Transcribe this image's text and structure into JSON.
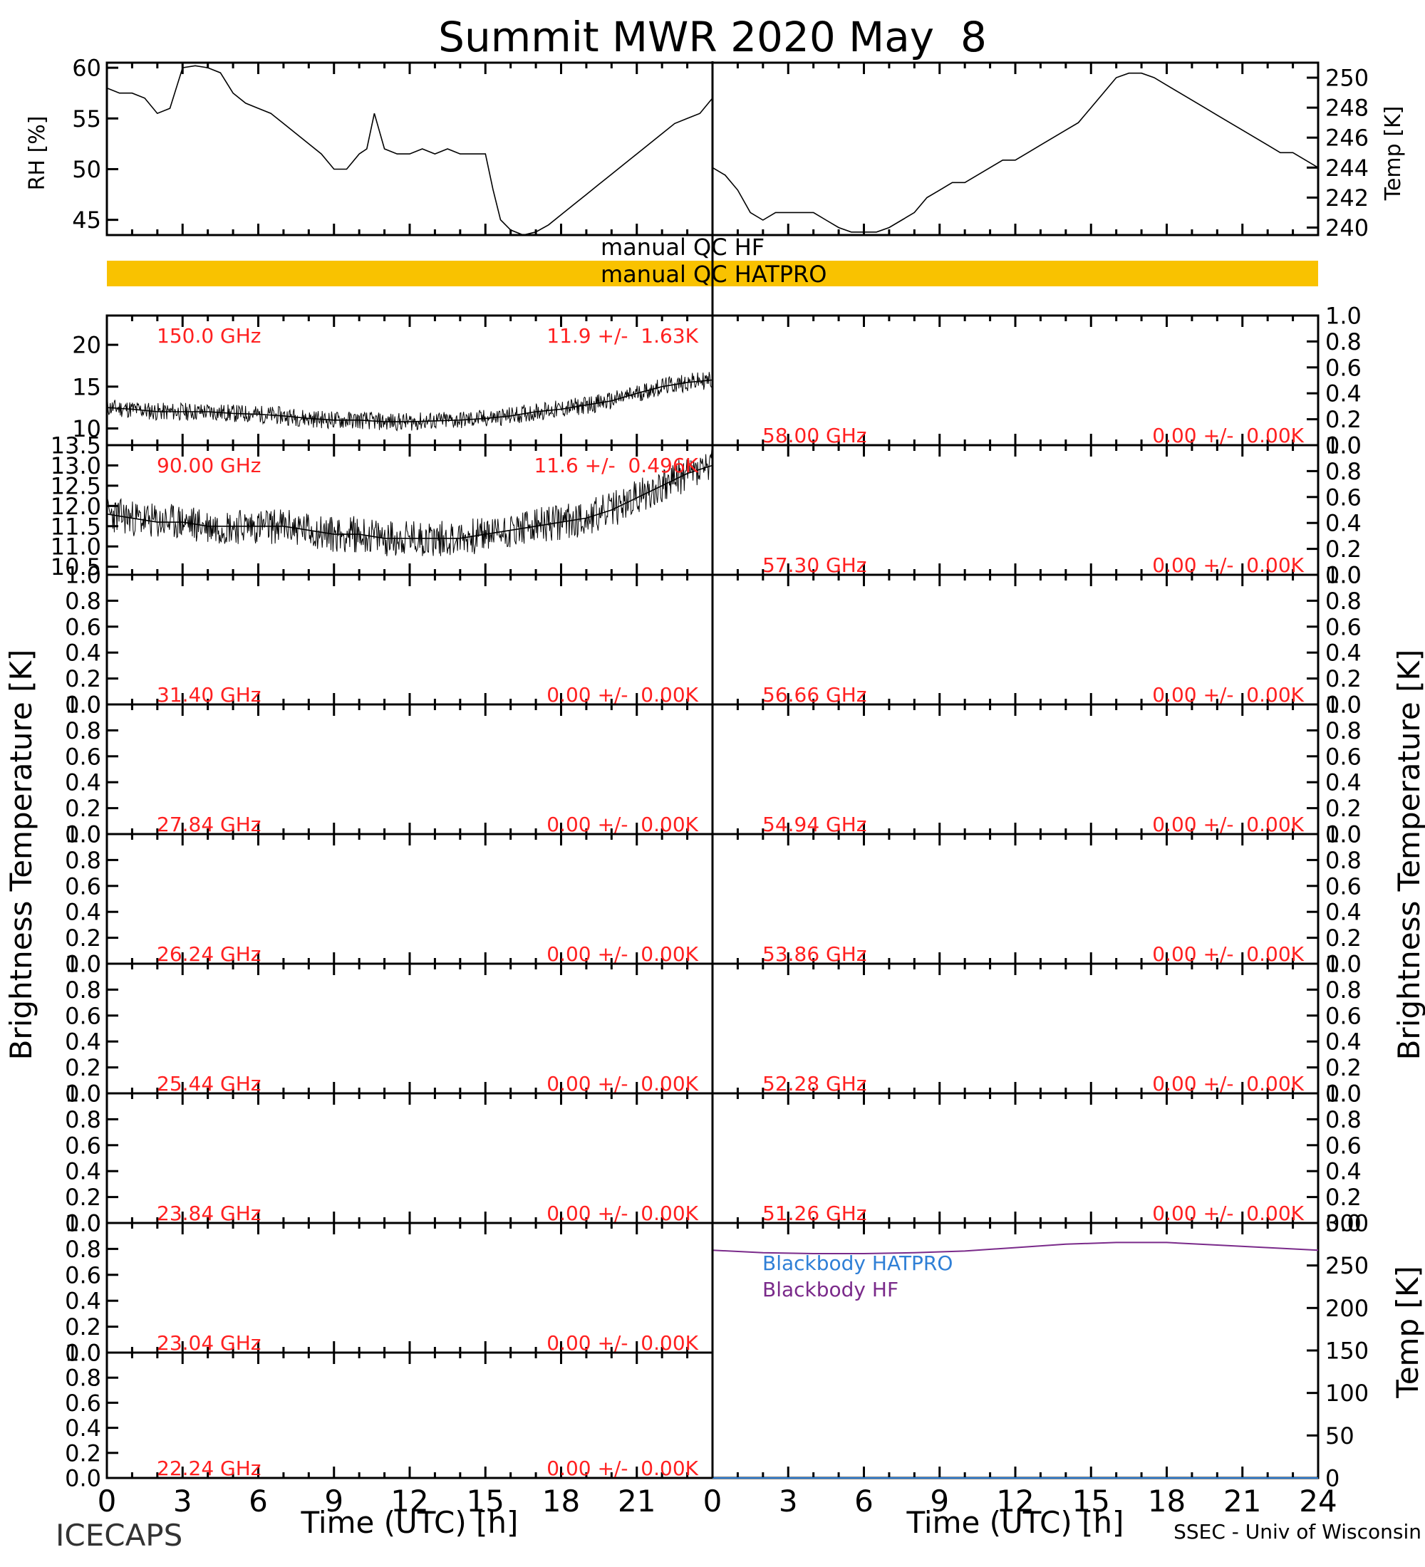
{
  "title": "Summit MWR 2020 May  8",
  "footer": {
    "left": "ICECAPS",
    "right": "SSEC - Univ of Wisconsin"
  },
  "labels": {
    "rh_axis": "RH [%]",
    "temp_axis": "Temp [K]",
    "tb_axis": "Brightness Temperature [K]",
    "bb_axis": "Temp [K]",
    "time_axis": "Time (UTC) [h]"
  },
  "qc": {
    "hf": "manual QC HF",
    "hatpro": "manual QC HATPRO",
    "hatpro_color": "#f9c200"
  },
  "colors": {
    "annotation": "#ff2020",
    "bb_hatpro": "#2f7fd6",
    "bb_hf": "#7a2a8a"
  },
  "chart_data": [
    {
      "id": "rh",
      "type": "line",
      "title": "",
      "xlabel": "",
      "ylabel": "RH [%]",
      "xlim": [
        0,
        24
      ],
      "ylim": [
        43.5,
        60.5
      ],
      "yticks": [
        45,
        50,
        55,
        60
      ],
      "series": [
        {
          "x": [
            0,
            0.5,
            1,
            1.5,
            2,
            2.5,
            3,
            3.5,
            4,
            4.5,
            5,
            5.5,
            6,
            6.5,
            7,
            7.5,
            8,
            8.5,
            9,
            9.5,
            10,
            10.3,
            10.6,
            11,
            11.5,
            12,
            12.5,
            13,
            13.5,
            14,
            14.5,
            15,
            15.3,
            15.6,
            16,
            16.5,
            17,
            17.5,
            18,
            18.5,
            19,
            19.5,
            20,
            20.5,
            21,
            21.5,
            22,
            22.5,
            23,
            23.5,
            24
          ],
          "y": [
            58,
            57.5,
            57.5,
            57,
            55.5,
            56,
            60,
            60.2,
            60,
            59.5,
            57.5,
            56.5,
            56,
            55.5,
            54.5,
            53.5,
            52.5,
            51.5,
            50,
            50,
            51.5,
            52,
            55.5,
            52,
            51.5,
            51.5,
            52,
            51.5,
            52,
            51.5,
            51.5,
            51.5,
            48,
            45,
            44,
            43.5,
            43.8,
            44.5,
            45.5,
            46.5,
            47.5,
            48.5,
            49.5,
            50.5,
            51.5,
            52.5,
            53.5,
            54.5,
            55,
            55.5,
            57
          ]
        }
      ]
    },
    {
      "id": "temp",
      "type": "line",
      "title": "",
      "xlabel": "",
      "ylabel": "Temp [K]",
      "xlim": [
        0,
        24
      ],
      "ylim": [
        239.5,
        251
      ],
      "yticks": [
        240,
        242,
        244,
        246,
        248,
        250
      ],
      "series": [
        {
          "x": [
            0,
            0.5,
            1,
            1.5,
            2,
            2.5,
            3,
            3.5,
            4,
            4.5,
            5,
            5.5,
            6,
            6.5,
            7,
            7.5,
            8,
            8.5,
            9,
            9.5,
            10,
            10.5,
            11,
            11.5,
            12,
            12.5,
            13,
            13.5,
            14,
            14.5,
            15,
            15.5,
            16,
            16.5,
            17,
            17.5,
            18,
            18.5,
            19,
            19.5,
            20,
            20.5,
            21,
            21.5,
            22,
            22.5,
            23,
            23.5,
            24
          ],
          "y": [
            244,
            243.5,
            242.5,
            241,
            240.5,
            241,
            241,
            241,
            241,
            240.5,
            240,
            239.7,
            239.7,
            239.7,
            240,
            240.5,
            241,
            242,
            242.5,
            243,
            243,
            243.5,
            244,
            244.5,
            244.5,
            245,
            245.5,
            246,
            246.5,
            247,
            248,
            249,
            250,
            250.3,
            250.3,
            250,
            249.5,
            249,
            248.5,
            248,
            247.5,
            247,
            246.5,
            246,
            245.5,
            245,
            245,
            244.5,
            244
          ]
        }
      ]
    },
    {
      "id": "ch150",
      "type": "line",
      "ylim": [
        8,
        23.5
      ],
      "yticks": [
        10,
        15,
        20
      ],
      "freq": "150.0 GHz",
      "stat": "11.9 +/-  1.63K",
      "series": [
        {
          "x": [
            0,
            1,
            2,
            3,
            4,
            5,
            6,
            7,
            8,
            9,
            10,
            11,
            12,
            13,
            14,
            15,
            16,
            17,
            18,
            19,
            20,
            21,
            22,
            23,
            24
          ],
          "y": [
            12.5,
            12.3,
            12,
            12,
            12,
            11.8,
            11.7,
            11.5,
            11.2,
            11,
            11,
            10.8,
            10.8,
            10.9,
            11,
            11.2,
            11.5,
            12,
            12.3,
            12.8,
            13.3,
            14.2,
            15,
            15.5,
            15.8
          ]
        }
      ]
    },
    {
      "id": "ch58",
      "type": "line",
      "ylim": [
        0,
        1
      ],
      "yticks": [
        0,
        0.2,
        0.4,
        0.6,
        0.8,
        1.0
      ],
      "freq": "58.00 GHz",
      "stat": "0.00 +/-  0.00K",
      "series": []
    },
    {
      "id": "ch90",
      "type": "line",
      "ylim": [
        10.3,
        13.5
      ],
      "yticks": [
        10.5,
        11.0,
        11.5,
        12.0,
        12.5,
        13.0,
        13.5
      ],
      "freq": "90.00 GHz",
      "stat": "11.6 +/-  0.496K",
      "series": [
        {
          "x": [
            0,
            1,
            2,
            3,
            4,
            5,
            6,
            7,
            8,
            9,
            10,
            11,
            12,
            13,
            14,
            15,
            16,
            17,
            18,
            19,
            20,
            21,
            22,
            23,
            24
          ],
          "y": [
            11.8,
            11.7,
            11.6,
            11.6,
            11.5,
            11.5,
            11.5,
            11.5,
            11.4,
            11.3,
            11.3,
            11.2,
            11.2,
            11.2,
            11.2,
            11.3,
            11.4,
            11.5,
            11.6,
            11.7,
            11.9,
            12.2,
            12.5,
            12.8,
            13.0
          ]
        }
      ]
    },
    {
      "id": "ch5730",
      "type": "line",
      "ylim": [
        0,
        1
      ],
      "yticks": [
        0,
        0.2,
        0.4,
        0.6,
        0.8,
        1.0
      ],
      "freq": "57.30 GHz",
      "stat": "0.00 +/-  0.00K",
      "series": []
    },
    {
      "id": "ch3140",
      "type": "line",
      "ylim": [
        0,
        1
      ],
      "yticks": [
        0,
        0.2,
        0.4,
        0.6,
        0.8,
        1.0
      ],
      "freq": "31.40 GHz",
      "stat": "0.00 +/-  0.00K",
      "series": []
    },
    {
      "id": "ch5666",
      "type": "line",
      "ylim": [
        0,
        1
      ],
      "yticks": [
        0,
        0.2,
        0.4,
        0.6,
        0.8,
        1.0
      ],
      "freq": "56.66 GHz",
      "stat": "0.00 +/-  0.00K",
      "series": []
    },
    {
      "id": "ch2784",
      "type": "line",
      "ylim": [
        0,
        1
      ],
      "yticks": [
        0,
        0.2,
        0.4,
        0.6,
        0.8,
        1.0
      ],
      "freq": "27.84 GHz",
      "stat": "0.00 +/-  0.00K",
      "series": []
    },
    {
      "id": "ch5494",
      "type": "line",
      "ylim": [
        0,
        1
      ],
      "yticks": [
        0,
        0.2,
        0.4,
        0.6,
        0.8,
        1.0
      ],
      "freq": "54.94 GHz",
      "stat": "0.00 +/-  0.00K",
      "series": []
    },
    {
      "id": "ch2624",
      "type": "line",
      "ylim": [
        0,
        1
      ],
      "yticks": [
        0,
        0.2,
        0.4,
        0.6,
        0.8,
        1.0
      ],
      "freq": "26.24 GHz",
      "stat": "0.00 +/-  0.00K",
      "series": []
    },
    {
      "id": "ch5386",
      "type": "line",
      "ylim": [
        0,
        1
      ],
      "yticks": [
        0,
        0.2,
        0.4,
        0.6,
        0.8,
        1.0
      ],
      "freq": "53.86 GHz",
      "stat": "0.00 +/-  0.00K",
      "series": []
    },
    {
      "id": "ch2544",
      "type": "line",
      "ylim": [
        0,
        1
      ],
      "yticks": [
        0,
        0.2,
        0.4,
        0.6,
        0.8,
        1.0
      ],
      "freq": "25.44 GHz",
      "stat": "0.00 +/-  0.00K",
      "series": []
    },
    {
      "id": "ch5228",
      "type": "line",
      "ylim": [
        0,
        1
      ],
      "yticks": [
        0,
        0.2,
        0.4,
        0.6,
        0.8,
        1.0
      ],
      "freq": "52.28 GHz",
      "stat": "0.00 +/-  0.00K",
      "series": []
    },
    {
      "id": "ch2384",
      "type": "line",
      "ylim": [
        0,
        1
      ],
      "yticks": [
        0,
        0.2,
        0.4,
        0.6,
        0.8,
        1.0
      ],
      "freq": "23.84 GHz",
      "stat": "0.00 +/-  0.00K",
      "series": []
    },
    {
      "id": "ch5126",
      "type": "line",
      "ylim": [
        0,
        1
      ],
      "yticks": [
        0,
        0.2,
        0.4,
        0.6,
        0.8,
        1.0
      ],
      "freq": "51.26 GHz",
      "stat": "0.00 +/-  0.00K",
      "series": []
    },
    {
      "id": "ch2304",
      "type": "line",
      "ylim": [
        0,
        1
      ],
      "yticks": [
        0,
        0.2,
        0.4,
        0.6,
        0.8,
        1.0
      ],
      "freq": "23.04 GHz",
      "stat": "0.00 +/-  0.00K",
      "series": []
    },
    {
      "id": "ch2224",
      "type": "line",
      "ylim": [
        0,
        1
      ],
      "yticks": [
        0,
        0.2,
        0.4,
        0.6,
        0.8,
        1.0
      ],
      "freq": "22.24 GHz",
      "stat": "0.00 +/-  0.00K",
      "series": []
    },
    {
      "id": "blackbody",
      "type": "line",
      "xlim": [
        0,
        24
      ],
      "ylim": [
        0,
        300
      ],
      "yticks": [
        0,
        50,
        100,
        150,
        200,
        250,
        300
      ],
      "series": [
        {
          "name": "Blackbody HATPRO",
          "x": [
            0,
            24
          ],
          "y": [
            0,
            0
          ]
        },
        {
          "name": "Blackbody HF",
          "x": [
            0,
            2,
            4,
            6,
            8,
            10,
            12,
            14,
            16,
            18,
            20,
            22,
            24
          ],
          "y": [
            268,
            265,
            264,
            264,
            265,
            267,
            271,
            275,
            277,
            277,
            274,
            271,
            268
          ]
        }
      ]
    }
  ],
  "time_ticks_left": [
    "0",
    "3",
    "6",
    "9",
    "12",
    "15",
    "18",
    "21"
  ],
  "time_ticks_right": [
    "0",
    "3",
    "6",
    "9",
    "12",
    "15",
    "18",
    "21",
    "24"
  ]
}
